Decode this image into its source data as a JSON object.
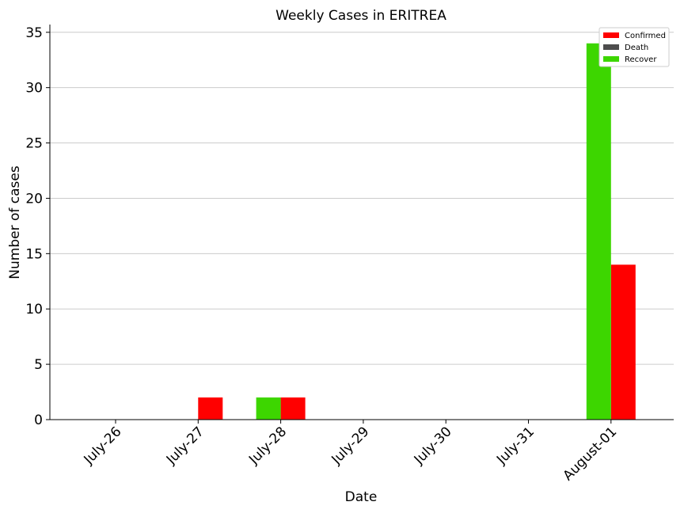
{
  "chart_data": {
    "type": "bar",
    "title": "Weekly Cases in ERITREA",
    "xlabel": "Date",
    "ylabel": "Number of cases",
    "categories": [
      "July-26",
      "July-27",
      "July-28",
      "July-29",
      "July-30",
      "July-31",
      "August-01"
    ],
    "ylim": [
      0,
      35.7
    ],
    "yticks": [
      0,
      5,
      10,
      15,
      20,
      25,
      30,
      35
    ],
    "grid": "horizontal",
    "legend_position": "top-right",
    "series": [
      {
        "name": "Confirmed",
        "color": "#ff0000",
        "values": [
          0,
          2,
          2,
          0,
          0,
          0,
          14
        ]
      },
      {
        "name": "Death",
        "color": "#4d4d4d",
        "values": [
          0,
          0,
          0,
          0,
          0,
          0,
          0
        ]
      },
      {
        "name": "Recover",
        "color": "#3dd600",
        "values": [
          0,
          0,
          2,
          0,
          0,
          0,
          34
        ]
      }
    ]
  }
}
